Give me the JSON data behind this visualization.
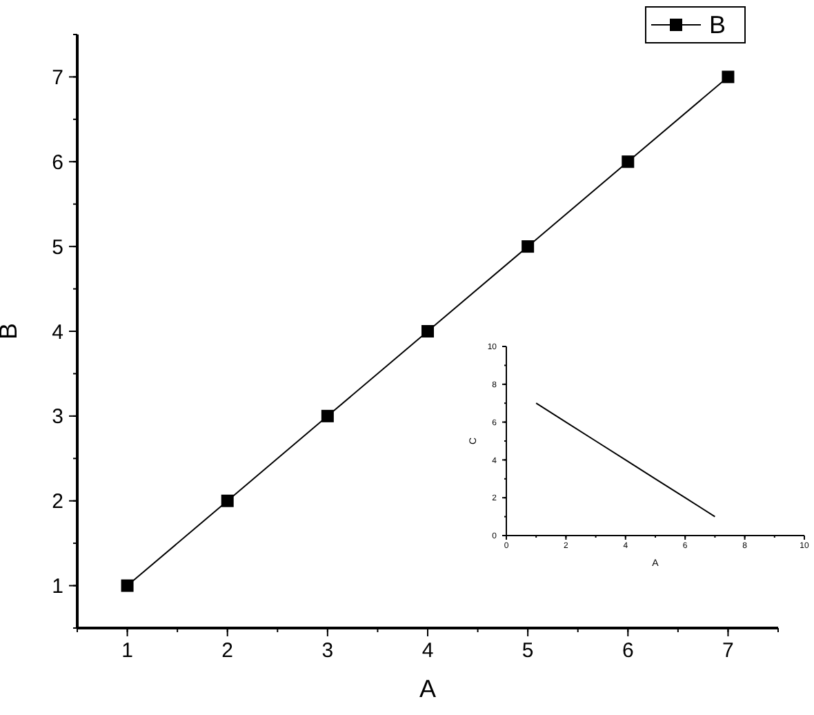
{
  "chart_data": [
    {
      "type": "line",
      "xlabel": "A",
      "ylabel": "B",
      "x": [
        1,
        2,
        3,
        4,
        5,
        6,
        7
      ],
      "xlim": [
        0.5,
        7.5
      ],
      "xticks": [
        1,
        2,
        3,
        4,
        5,
        6,
        7
      ],
      "ylim": [
        0.5,
        7.5
      ],
      "yticks": [
        1,
        2,
        3,
        4,
        5,
        6,
        7
      ],
      "grid": false,
      "legend": "top right",
      "marker": "square",
      "line_style": "solid",
      "series": [
        {
          "name": "B",
          "color": "#000000",
          "values": [
            1,
            2,
            3,
            4,
            5,
            6,
            7
          ]
        }
      ]
    },
    {
      "type": "line",
      "xlabel": "A",
      "ylabel": "C",
      "x": [
        1,
        2,
        3,
        4,
        5,
        6,
        7
      ],
      "xlim": [
        0,
        10
      ],
      "xticks": [
        0,
        2,
        4,
        6,
        8,
        10
      ],
      "ylim": [
        0,
        10
      ],
      "yticks": [
        0,
        2,
        4,
        6,
        8,
        10
      ],
      "grid": false,
      "legend": false,
      "marker": "none",
      "line_style": "solid",
      "series": [
        {
          "color": "#000000",
          "values": [
            7,
            6,
            5,
            4,
            3,
            2,
            1
          ]
        }
      ]
    }
  ]
}
